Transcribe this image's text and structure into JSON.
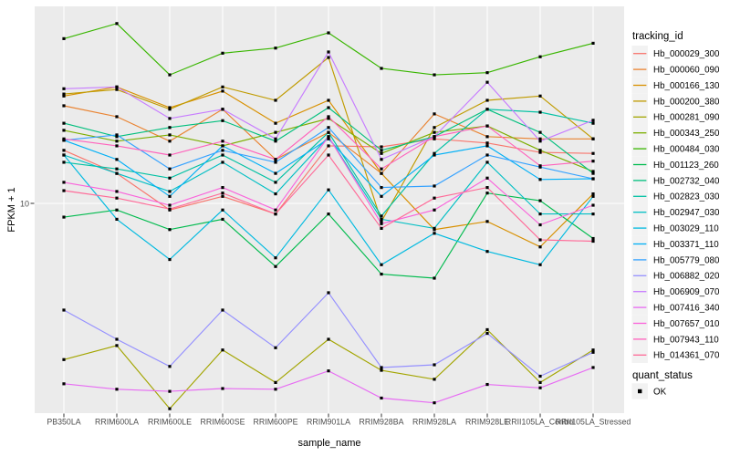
{
  "chart_data": {
    "type": "line",
    "title": "",
    "xlabel": "sample_name",
    "ylabel": "FPKM + 1",
    "y_scale": "log10",
    "y_ticks": [
      10
    ],
    "y_tick_labels": [
      "10"
    ],
    "grid": true,
    "legend_position": "right",
    "legend_title": "tracking_id",
    "categories": [
      "PB350LA",
      "RRIM600LA",
      "RRIM600LE",
      "RRIM600SE",
      "RRIM600PE",
      "RRIM901LA",
      "RRIM928BA",
      "RRIM928LA",
      "RRIM928LE",
      "RRII105LA_Control",
      "RRII105LA_Stressed"
    ],
    "series": [
      {
        "name": "Hb_000029_300",
        "color": "#F8766D",
        "values": [
          17.9,
          13.9,
          9.3,
          10.8,
          8.9,
          18.8,
          18.6,
          20.3,
          19.4,
          17.5,
          17.3
        ]
      },
      {
        "name": "Hb_000060_090",
        "color": "#EA8331",
        "values": [
          29.2,
          25.9,
          19.8,
          28.1,
          16.2,
          21.8,
          13.9,
          26.7,
          20.8,
          20.3,
          20.3
        ]
      },
      {
        "name": "Hb_000166_130",
        "color": "#D89000",
        "values": [
          32.5,
          35.9,
          28.6,
          34.3,
          24.1,
          31.0,
          13.9,
          7.5,
          8.2,
          6.2,
          11.1
        ]
      },
      {
        "name": "Hb_000200_380",
        "color": "#C09B00",
        "values": [
          33.2,
          34.9,
          28.1,
          35.9,
          31.0,
          49.6,
          8.2,
          23.0,
          31.0,
          32.5,
          20.3
        ]
      },
      {
        "name": "Hb_000281_090",
        "color": "#A3A500",
        "values": [
          1.8,
          2.1,
          1.05,
          2.0,
          1.4,
          2.25,
          1.6,
          1.45,
          2.5,
          1.4,
          2.0
        ]
      },
      {
        "name": "Hb_000343_250",
        "color": "#7CAE00",
        "values": [
          22.3,
          19.8,
          21.2,
          18.8,
          21.8,
          25.4,
          17.3,
          21.8,
          23.4,
          17.9,
          14.2
        ]
      },
      {
        "name": "Hb_000484_030",
        "color": "#39B600",
        "values": [
          61,
          72,
          41,
          52,
          55,
          65,
          44,
          41,
          42,
          50,
          58
        ]
      },
      {
        "name": "Hb_001123_260",
        "color": "#00BB4E",
        "values": [
          8.6,
          9.3,
          7.5,
          8.4,
          5.0,
          8.9,
          4.6,
          4.4,
          11.2,
          10.3,
          6.8
        ]
      },
      {
        "name": "Hb_002732_040",
        "color": "#00BF7D",
        "values": [
          24.1,
          20.8,
          23.0,
          24.8,
          19.8,
          28.6,
          17.9,
          20.8,
          28.1,
          21.8,
          13.9
        ]
      },
      {
        "name": "Hb_002823_030",
        "color": "#00C1A3",
        "values": [
          15.7,
          14.6,
          13.2,
          17.0,
          12.6,
          21.8,
          8.7,
          17.3,
          28.1,
          27.2,
          24.1
        ]
      },
      {
        "name": "Hb_002947_030",
        "color": "#00BFC4",
        "values": [
          17.0,
          13.9,
          11.4,
          15.7,
          11.1,
          20.8,
          8.4,
          7.6,
          15.7,
          8.9,
          8.9
        ]
      },
      {
        "name": "Hb_003029_110",
        "color": "#00BAE0",
        "values": [
          17.0,
          8.4,
          5.4,
          9.3,
          5.5,
          11.6,
          5.1,
          7.2,
          5.9,
          5.1,
          10.8
        ]
      },
      {
        "name": "Hb_003371_110",
        "color": "#00B0F6",
        "values": [
          20.0,
          16.2,
          10.8,
          18.8,
          13.9,
          20.3,
          10.8,
          17.0,
          18.8,
          13.0,
          13.1
        ]
      },
      {
        "name": "Hb_005779_080",
        "color": "#35A2FF",
        "values": [
          20.0,
          21.2,
          14.6,
          17.9,
          15.7,
          23.0,
          11.9,
          12.1,
          17.0,
          14.9,
          13.1
        ]
      },
      {
        "name": "Hb_006882_020",
        "color": "#9590FF",
        "values": [
          3.1,
          2.25,
          1.67,
          3.1,
          2.05,
          3.75,
          1.65,
          1.7,
          2.4,
          1.5,
          1.95
        ]
      },
      {
        "name": "Hb_006909_070",
        "color": "#C77CFF",
        "values": [
          35.2,
          35.9,
          25.4,
          28.1,
          20.3,
          52.7,
          16.2,
          20.8,
          37.8,
          19.8,
          24.9
        ]
      },
      {
        "name": "Hb_007416_340",
        "color": "#E76BF3",
        "values": [
          1.38,
          1.3,
          1.27,
          1.31,
          1.3,
          1.59,
          1.18,
          1.12,
          1.37,
          1.32,
          1.65
        ]
      },
      {
        "name": "Hb_007657_010",
        "color": "#FA62DB",
        "values": [
          12.6,
          11.4,
          9.8,
          11.9,
          9.3,
          20.8,
          8.0,
          9.3,
          13.2,
          7.9,
          9.8
        ]
      },
      {
        "name": "Hb_007943_110",
        "color": "#FF62BC",
        "values": [
          20.3,
          18.8,
          17.0,
          19.8,
          16.2,
          25.9,
          14.6,
          20.8,
          23.4,
          15.1,
          15.9
        ]
      },
      {
        "name": "Hb_014361_070",
        "color": "#FF6A98",
        "values": [
          11.5,
          10.6,
          9.4,
          11.2,
          8.9,
          17.0,
          7.6,
          10.6,
          11.9,
          6.7,
          6.6
        ]
      }
    ]
  },
  "legend2": {
    "title": "quant_status",
    "items": [
      {
        "label": "OK",
        "marker": "black-square"
      }
    ]
  },
  "colors": {
    "panel_bg": "#EBEBEB",
    "gridline": "#FFFFFF",
    "tick_text": "#4D4D4D",
    "axis_text": "#000000",
    "point": "#000000",
    "legend_key_bg": "#F2F2F2"
  }
}
